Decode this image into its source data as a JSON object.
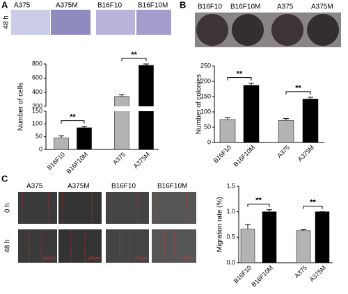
{
  "figure": {
    "panel_a": {
      "label": "A",
      "image_labels": [
        "A375",
        "A375M",
        "B16F10",
        "B16F10M"
      ],
      "row_label": "48 h"
    },
    "panel_b": {
      "label": "B",
      "image_labels": [
        "B16F10",
        "B16F10M",
        "A375",
        "A375M"
      ]
    },
    "panel_c": {
      "label": "C",
      "image_labels": [
        "A375",
        "A375M",
        "B16F10",
        "B16F10M"
      ],
      "row_labels": [
        "0 h",
        "48 h"
      ],
      "scale_bar": "200μm"
    }
  },
  "chart_data": [
    {
      "type": "bar",
      "y_label": "Number of cells",
      "categories": [
        "B16F10",
        "B16F10M",
        "A375",
        "A375M"
      ],
      "values": [
        45,
        85,
        340,
        780
      ],
      "errors": [
        8,
        6,
        25,
        20
      ],
      "colors": [
        "#b3b3b3",
        "#000000",
        "#b3b3b3",
        "#000000"
      ],
      "ylim": [
        0,
        800
      ],
      "yticks": [
        0,
        50,
        100,
        150,
        200,
        400,
        600,
        800
      ],
      "ybreak": [
        150,
        200
      ],
      "annotations": [
        "**",
        "**"
      ]
    },
    {
      "type": "bar",
      "y_label": "Number of colonies",
      "categories": [
        "B16F10",
        "B16F10M",
        "A375",
        "A375M"
      ],
      "values": [
        75,
        187,
        72,
        142
      ],
      "errors": [
        6,
        7,
        6,
        6
      ],
      "colors": [
        "#b3b3b3",
        "#000000",
        "#b3b3b3",
        "#000000"
      ],
      "ylim": [
        0,
        250
      ],
      "yticks": [
        0,
        50,
        100,
        150,
        200,
        250
      ],
      "annotations": [
        "**",
        "**"
      ]
    },
    {
      "type": "bar",
      "y_label": "Migration rate (%)",
      "categories": [
        "B16F10",
        "B16F10M",
        "A375",
        "A375M"
      ],
      "values": [
        0.66,
        1.0,
        0.63,
        1.0
      ],
      "errors": [
        0.09,
        0.04,
        0.02,
        0.0
      ],
      "colors": [
        "#b3b3b3",
        "#000000",
        "#b3b3b3",
        "#000000"
      ],
      "ylim": [
        0,
        1.5
      ],
      "yticks": [
        {
          "value": 0,
          "label": "0.0"
        },
        0.5,
        {
          "value": 1,
          "label": "1.0"
        },
        1.5
      ],
      "annotations": [
        "**",
        "**"
      ]
    }
  ]
}
